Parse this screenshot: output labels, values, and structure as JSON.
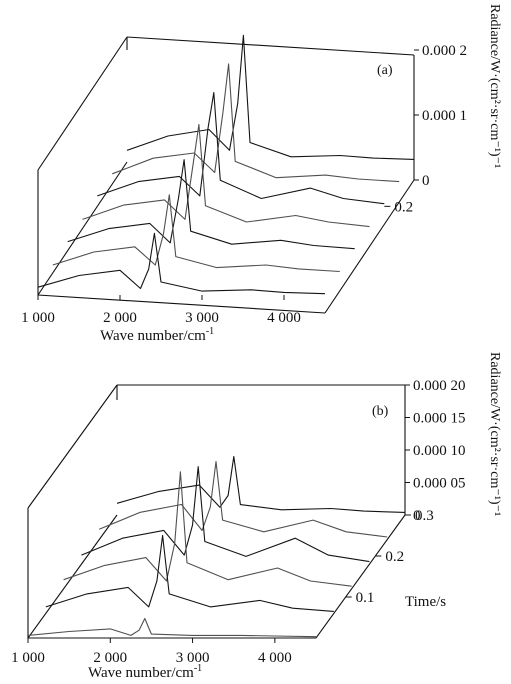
{
  "chart_data": [
    {
      "type": "line",
      "panel_label": "(a)",
      "xlabel": "Wave number/cm",
      "xlabel_sup": "-1",
      "xticks": [
        1000,
        2000,
        3000,
        4000
      ],
      "xtick_labels": [
        "1 000",
        "2 000",
        "3 000",
        "4 000"
      ],
      "xlim": [
        1000,
        4500
      ],
      "zlabel": "Radiance/W·(cm²·sr·cm⁻¹)⁻¹",
      "zticks": [
        0,
        0.0001,
        0.0002
      ],
      "ztick_labels": [
        "0",
        "0.000 1",
        "0.000 2"
      ],
      "zlim": [
        0,
        0.0002
      ],
      "depth_ticks": [
        0.2
      ],
      "depth_tick_labels": [
        "0.2"
      ],
      "series": [
        {
          "time": 0.0,
          "values": [
            [
              1000,
              1.2e-05
            ],
            [
              1500,
              3e-05
            ],
            [
              2000,
              3.8e-05
            ],
            [
              2250,
              1e-05
            ],
            [
              2350,
              4e-05
            ],
            [
              2420,
              9.5e-05
            ],
            [
              2500,
              2e-05
            ],
            [
              3000,
              6e-06
            ],
            [
              3600,
              8e-06
            ],
            [
              4000,
              4e-06
            ],
            [
              4500,
              2e-06
            ]
          ]
        },
        {
          "time": 0.05,
          "values": [
            [
              1000,
              1.2e-05
            ],
            [
              1500,
              3.2e-05
            ],
            [
              2000,
              4e-05
            ],
            [
              2250,
              1.2e-05
            ],
            [
              2350,
              6e-05
            ],
            [
              2420,
              0.00012
            ],
            [
              2500,
              2.5e-05
            ],
            [
              3000,
              8e-06
            ],
            [
              3600,
              1.2e-05
            ],
            [
              4000,
              6e-06
            ],
            [
              4500,
              2e-06
            ]
          ]
        },
        {
          "time": 0.1,
          "values": [
            [
              1000,
              1.4e-05
            ],
            [
              1500,
              3.4e-05
            ],
            [
              2000,
              4.2e-05
            ],
            [
              2250,
              1.2e-05
            ],
            [
              2350,
              8e-05
            ],
            [
              2420,
              0.00014
            ],
            [
              2500,
              3e-05
            ],
            [
              3000,
              1e-05
            ],
            [
              3600,
              1.6e-05
            ],
            [
              4000,
              8e-06
            ],
            [
              4500,
              3e-06
            ]
          ]
        },
        {
          "time": 0.15,
          "values": [
            [
              1000,
              1.4e-05
            ],
            [
              1500,
              3.6e-05
            ],
            [
              2000,
              4.4e-05
            ],
            [
              2250,
              1.4e-05
            ],
            [
              2350,
              0.0001
            ],
            [
              2420,
              0.00016
            ],
            [
              2500,
              3.5e-05
            ],
            [
              3000,
              1e-05
            ],
            [
              3600,
              2e-05
            ],
            [
              4000,
              1e-05
            ],
            [
              4500,
              3e-06
            ]
          ]
        },
        {
          "time": 0.2,
          "values": [
            [
              1000,
              1.6e-05
            ],
            [
              1500,
              3.8e-05
            ],
            [
              2000,
              4.6e-05
            ],
            [
              2250,
              1.6e-05
            ],
            [
              2350,
              0.00012
            ],
            [
              2420,
              0.000175
            ],
            [
              2500,
              4e-05
            ],
            [
              3000,
              1.2e-05
            ],
            [
              3600,
              2.8e-05
            ],
            [
              4000,
              1.2e-05
            ],
            [
              4500,
              4e-06
            ]
          ]
        },
        {
          "time": 0.25,
          "values": [
            [
              1000,
              1.6e-05
            ],
            [
              1500,
              4e-05
            ],
            [
              2000,
              4.8e-05
            ],
            [
              2250,
              1.8e-05
            ],
            [
              2350,
              0.00011
            ],
            [
              2420,
              0.000185
            ],
            [
              2500,
              3.5e-05
            ],
            [
              3000,
              1e-05
            ],
            [
              3600,
              1.4e-05
            ],
            [
              4000,
              8e-06
            ],
            [
              4500,
              4e-06
            ]
          ]
        },
        {
          "time": 0.3,
          "values": [
            [
              1000,
              1.8e-05
            ],
            [
              1500,
              4e-05
            ],
            [
              2000,
              5e-05
            ],
            [
              2250,
              1.8e-05
            ],
            [
              2350,
              9e-05
            ],
            [
              2420,
              0.000195
            ],
            [
              2500,
              3e-05
            ],
            [
              3000,
              8e-06
            ],
            [
              3600,
              1e-05
            ],
            [
              4000,
              6e-06
            ],
            [
              4500,
              4e-06
            ]
          ]
        }
      ]
    },
    {
      "type": "line",
      "panel_label": "(b)",
      "xlabel": "Wave number/cm",
      "xlabel_sup": "-1",
      "xticks": [
        1000,
        2000,
        3000,
        4000
      ],
      "xtick_labels": [
        "1 000",
        "2 000",
        "3 000",
        "4 000"
      ],
      "xlim": [
        1000,
        4500
      ],
      "zlabel": "Radiance/W·(cm²·sr·cm⁻¹)⁻¹",
      "zticks": [
        0,
        5e-05,
        0.0001,
        0.00015,
        0.0002
      ],
      "ztick_labels": [
        "0",
        "0.000 05",
        "0.000 10",
        "0.000 15",
        "0.000 20"
      ],
      "zlim": [
        0,
        0.0002
      ],
      "depth_label": "Time/s",
      "depth_ticks": [
        0.1,
        0.2,
        0.3
      ],
      "depth_tick_labels": [
        "0.1",
        "0.2",
        "0.3"
      ],
      "series": [
        {
          "time": 0.0,
          "values": [
            [
              1000,
              4e-06
            ],
            [
              1500,
              1e-05
            ],
            [
              2000,
              1.4e-05
            ],
            [
              2250,
              4e-06
            ],
            [
              2350,
              1.2e-05
            ],
            [
              2420,
              3e-05
            ],
            [
              2500,
              6e-06
            ],
            [
              3000,
              4e-06
            ],
            [
              3600,
              4e-06
            ],
            [
              4000,
              3e-06
            ],
            [
              4500,
              2e-06
            ]
          ]
        },
        {
          "time": 0.06,
          "values": [
            [
              1000,
              1e-05
            ],
            [
              1500,
              3e-05
            ],
            [
              2000,
              4e-05
            ],
            [
              2250,
              1e-05
            ],
            [
              2350,
              5e-05
            ],
            [
              2420,
              0.00012
            ],
            [
              2500,
              3e-05
            ],
            [
              3000,
              1e-05
            ],
            [
              3600,
              2e-05
            ],
            [
              4000,
              8e-06
            ],
            [
              4500,
              3e-06
            ]
          ]
        },
        {
          "time": 0.12,
          "values": [
            [
              1000,
              1.4e-05
            ],
            [
              1500,
              3.6e-05
            ],
            [
              2000,
              4.8e-05
            ],
            [
              2250,
              1.2e-05
            ],
            [
              2350,
              7e-05
            ],
            [
              2420,
              0.00018
            ],
            [
              2500,
              4e-05
            ],
            [
              3000,
              1.4e-05
            ],
            [
              3600,
              3.2e-05
            ],
            [
              4000,
              1.2e-05
            ],
            [
              4500,
              4e-06
            ]
          ]
        },
        {
          "time": 0.18,
          "values": [
            [
              1000,
              1.4e-05
            ],
            [
              1500,
              4e-05
            ],
            [
              2000,
              5.2e-05
            ],
            [
              2250,
              1.4e-05
            ],
            [
              2350,
              6e-05
            ],
            [
              2420,
              0.00015
            ],
            [
              2500,
              3.5e-05
            ],
            [
              3000,
              1.2e-05
            ],
            [
              3600,
              4e-05
            ],
            [
              4000,
              1.4e-05
            ],
            [
              4500,
              4e-06
            ]
          ]
        },
        {
          "time": 0.24,
          "values": [
            [
              1000,
              1.6e-05
            ],
            [
              1500,
              4.2e-05
            ],
            [
              2000,
              5.4e-05
            ],
            [
              2250,
              1.4e-05
            ],
            [
              2350,
              5e-05
            ],
            [
              2420,
              0.00012
            ],
            [
              2500,
              3e-05
            ],
            [
              3000,
              1.2e-05
            ],
            [
              3600,
              3e-05
            ],
            [
              4000,
              1.2e-05
            ],
            [
              4500,
              4e-06
            ]
          ]
        },
        {
          "time": 0.3,
          "values": [
            [
              1000,
              1.8e-05
            ],
            [
              1500,
              3.6e-05
            ],
            [
              2000,
              4.6e-05
            ],
            [
              2250,
              1.2e-05
            ],
            [
              2350,
              3e-05
            ],
            [
              2420,
              9e-05
            ],
            [
              2500,
              1.6e-05
            ],
            [
              3000,
              8e-06
            ],
            [
              3600,
              1e-05
            ],
            [
              4000,
              6e-06
            ],
            [
              4500,
              4e-06
            ]
          ]
        }
      ]
    }
  ]
}
